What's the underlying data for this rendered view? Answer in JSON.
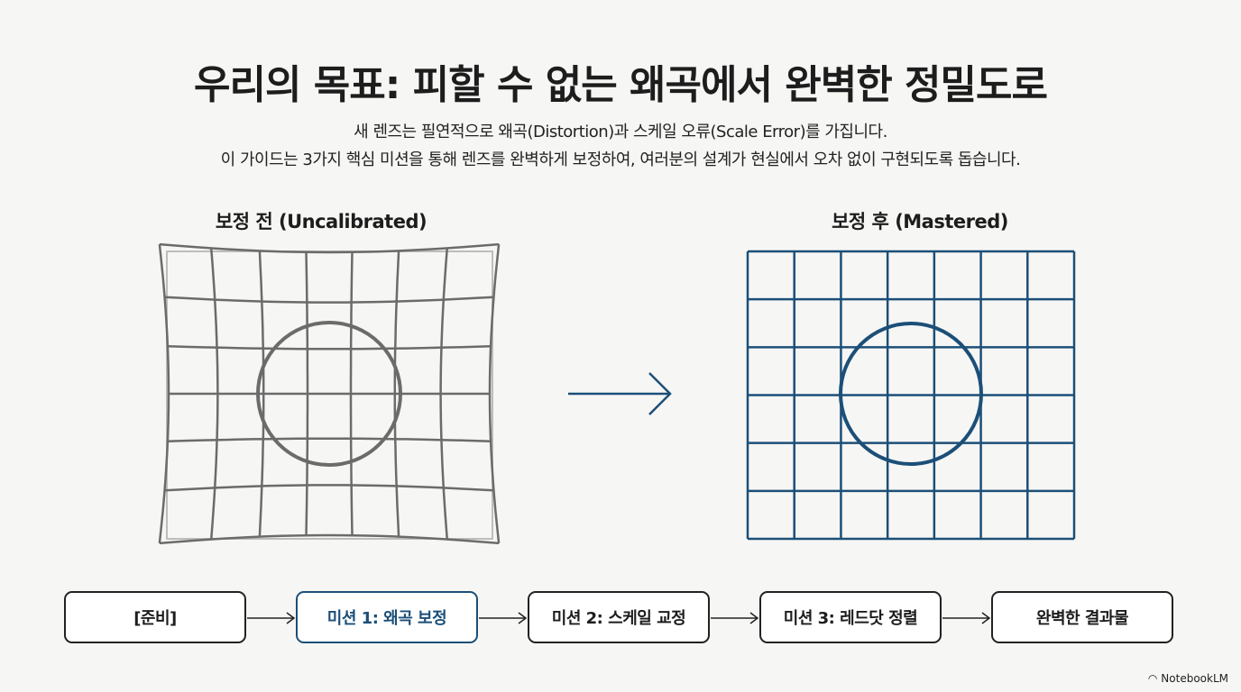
{
  "title": "우리의 목표: 피할 수 없는 왜곡에서 완벽한 정밀도로",
  "subtitle": [
    "새 렌즈는 필연적으로 왜곡(Distortion)과 스케일 오류(Scale Error)를 가집니다.",
    "이 가이드는 3가지 핵심 미션을 통해 렌즈를 완벽하게 보정하여, 여러분의 설계가 현실에서 오차 없이 구현되도록 돕습니다."
  ],
  "before": {
    "label": "보정 전 (Uncalibrated)",
    "color": "#6b6b6b"
  },
  "after": {
    "label": "보정 후 (Mastered)",
    "color": "#1c4f78"
  },
  "flow": [
    {
      "label": "[준비]",
      "active": false
    },
    {
      "label": "미션 1: 왜곡 보정",
      "active": true
    },
    {
      "label": "미션 2: 스케일 교정",
      "active": false
    },
    {
      "label": "미션 3: 레드닷 정렬",
      "active": false
    },
    {
      "label": "완벽한 결과물",
      "active": false
    }
  ],
  "brand": "NotebookLM"
}
